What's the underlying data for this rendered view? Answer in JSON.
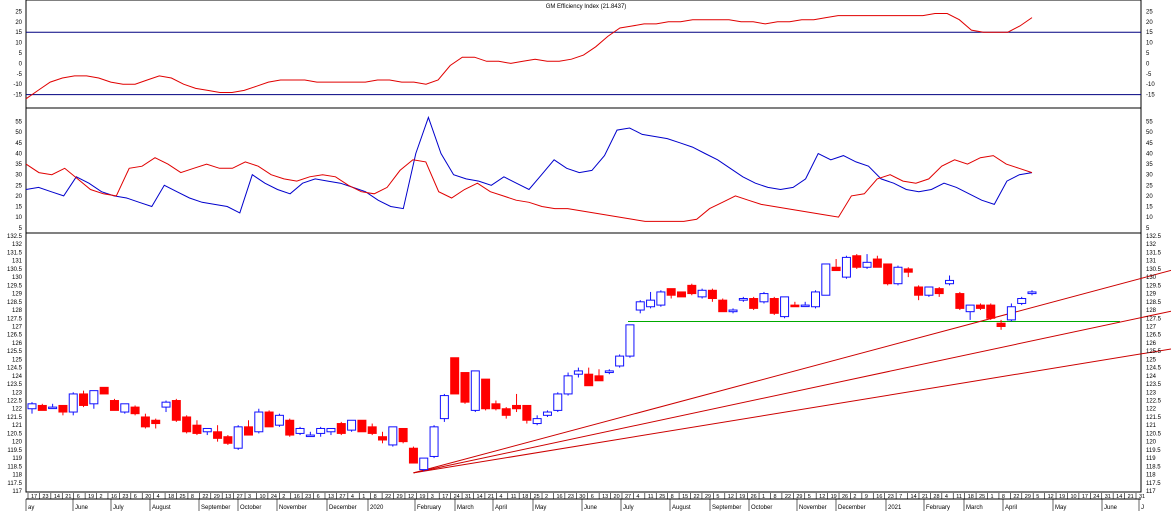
{
  "chart_data": [
    {
      "type": "line",
      "title": "GM Efficiency Index (21.8437)",
      "ylim": [
        -20,
        30
      ],
      "yticks": [
        25,
        20,
        15,
        10,
        5,
        0,
        -5,
        -10,
        -15
      ],
      "reference_lines": [
        15,
        -15
      ],
      "colors": {
        "index": "#e00000",
        "reference": "#000080"
      },
      "series": [
        {
          "values": [
            -17,
            -13,
            -9,
            -7,
            -6,
            -6,
            -7,
            -9,
            -10,
            -10,
            -8,
            -6,
            -7,
            -10,
            -12,
            -13,
            -14,
            -14,
            -13,
            -11,
            -9,
            -8,
            -8,
            -8,
            -9,
            -9,
            -9,
            -9,
            -9,
            -8,
            -8,
            -9,
            -9,
            -10,
            -8,
            -1,
            3,
            3,
            1,
            1,
            0,
            1,
            2,
            1,
            1,
            2,
            4,
            8,
            13,
            17,
            18,
            19,
            19,
            20,
            20,
            21,
            21,
            21,
            21,
            20,
            20,
            19,
            20,
            20,
            21,
            21,
            22,
            23,
            23,
            23,
            23,
            23,
            23,
            23,
            23,
            24,
            24,
            21,
            16,
            15,
            15,
            15,
            18,
            22
          ]
        }
      ]
    },
    {
      "type": "line",
      "ylim": [
        3,
        60
      ],
      "yticks": [
        55,
        50,
        45,
        40,
        35,
        30,
        25,
        20,
        15,
        10,
        5
      ],
      "colors": {
        "blue": "#0000cc",
        "red": "#e00000"
      },
      "series": [
        {
          "values": [
            23,
            24,
            22,
            20,
            29,
            26,
            22,
            20,
            19,
            17,
            15,
            25,
            22,
            19,
            17,
            16,
            15,
            12,
            30,
            26,
            23,
            21,
            26,
            28,
            27,
            26,
            24,
            22,
            18,
            15,
            14,
            40,
            57,
            40,
            30,
            28,
            27,
            25,
            29,
            26,
            23,
            30,
            37,
            33,
            31,
            32,
            39,
            51,
            52,
            49,
            48,
            47,
            45,
            43,
            40,
            37,
            33,
            29,
            26,
            24,
            23,
            24,
            28,
            40,
            37,
            39,
            36,
            34,
            28,
            26,
            23,
            22,
            23,
            26,
            24,
            21,
            18,
            16,
            27,
            30,
            31
          ]
        },
        {
          "values": [
            35,
            31,
            30,
            33,
            28,
            23,
            21,
            20,
            33,
            34,
            38,
            35,
            31,
            33,
            35,
            33,
            33,
            36,
            34,
            30,
            28,
            27,
            29,
            30,
            29,
            25,
            22,
            21,
            24,
            32,
            37,
            36,
            22,
            19,
            23,
            26,
            22,
            20,
            18,
            17,
            15,
            14,
            14,
            13,
            12,
            11,
            10,
            9,
            8,
            8,
            8,
            8,
            9,
            14,
            17,
            20,
            18,
            16,
            15,
            14,
            13,
            12,
            11,
            10,
            20,
            21,
            28,
            30,
            27,
            26,
            28,
            34,
            37,
            35,
            38,
            39,
            35,
            33,
            31
          ]
        }
      ]
    },
    {
      "type": "candlestick",
      "ylim": [
        117.0,
        132.5
      ],
      "yticks": [
        132.5,
        132.0,
        131.5,
        131.0,
        130.5,
        130.0,
        129.5,
        129.0,
        128.5,
        128.0,
        127.5,
        127.0,
        126.5,
        126.0,
        125.5,
        125.0,
        124.5,
        124.0,
        123.5,
        123.0,
        122.5,
        122.0,
        121.5,
        121.0,
        120.5,
        120.0,
        119.5,
        119.0,
        118.5,
        118.0,
        117.5,
        117.0
      ],
      "colors": {
        "up": "#1010ff",
        "down": "#ff0000",
        "support": "#00aa00",
        "fan": "#cc0000"
      },
      "bars": [
        {
          "o": 122.0,
          "h": 122.4,
          "l": 121.7,
          "c": 122.3
        },
        {
          "o": 122.2,
          "h": 122.3,
          "l": 121.9,
          "c": 121.9
        },
        {
          "o": 122.1,
          "h": 122.3,
          "l": 122.0,
          "c": 122.1
        },
        {
          "o": 122.2,
          "h": 122.2,
          "l": 121.6,
          "c": 121.8
        },
        {
          "o": 121.8,
          "h": 123.0,
          "l": 121.6,
          "c": 122.9
        },
        {
          "o": 122.9,
          "h": 123.1,
          "l": 122.1,
          "c": 122.2
        },
        {
          "o": 122.3,
          "h": 123.1,
          "l": 122.0,
          "c": 123.1
        },
        {
          "o": 123.3,
          "h": 123.3,
          "l": 122.9,
          "c": 122.9
        },
        {
          "o": 122.5,
          "h": 122.6,
          "l": 121.9,
          "c": 121.9
        },
        {
          "o": 121.8,
          "h": 122.3,
          "l": 121.7,
          "c": 122.3
        },
        {
          "o": 122.1,
          "h": 122.2,
          "l": 121.6,
          "c": 121.7
        },
        {
          "o": 121.5,
          "h": 121.7,
          "l": 120.8,
          "c": 120.9
        },
        {
          "o": 121.3,
          "h": 121.4,
          "l": 120.8,
          "c": 121.1
        },
        {
          "o": 122.1,
          "h": 122.5,
          "l": 121.8,
          "c": 122.4
        },
        {
          "o": 122.5,
          "h": 122.6,
          "l": 121.2,
          "c": 121.3
        },
        {
          "o": 121.5,
          "h": 121.6,
          "l": 120.5,
          "c": 120.6
        },
        {
          "o": 121.0,
          "h": 121.3,
          "l": 120.4,
          "c": 120.5
        },
        {
          "o": 120.6,
          "h": 120.8,
          "l": 120.4,
          "c": 120.8
        },
        {
          "o": 120.6,
          "h": 121.0,
          "l": 120.0,
          "c": 120.2
        },
        {
          "o": 120.3,
          "h": 120.4,
          "l": 119.8,
          "c": 119.9
        },
        {
          "o": 119.6,
          "h": 121.0,
          "l": 119.5,
          "c": 120.9
        },
        {
          "o": 120.9,
          "h": 121.3,
          "l": 120.4,
          "c": 120.4
        },
        {
          "o": 120.6,
          "h": 122.0,
          "l": 120.5,
          "c": 121.8
        },
        {
          "o": 121.8,
          "h": 121.9,
          "l": 120.9,
          "c": 120.9
        },
        {
          "o": 121.0,
          "h": 121.7,
          "l": 120.9,
          "c": 121.6
        },
        {
          "o": 121.3,
          "h": 121.4,
          "l": 120.3,
          "c": 120.4
        },
        {
          "o": 120.5,
          "h": 120.9,
          "l": 120.4,
          "c": 120.8
        },
        {
          "o": 120.4,
          "h": 120.6,
          "l": 120.3,
          "c": 120.4
        },
        {
          "o": 120.5,
          "h": 120.9,
          "l": 120.3,
          "c": 120.8
        },
        {
          "o": 120.6,
          "h": 120.8,
          "l": 120.4,
          "c": 120.8
        },
        {
          "o": 121.1,
          "h": 121.2,
          "l": 120.4,
          "c": 120.5
        },
        {
          "o": 120.7,
          "h": 121.3,
          "l": 120.6,
          "c": 121.3
        },
        {
          "o": 121.3,
          "h": 121.3,
          "l": 120.6,
          "c": 120.6
        },
        {
          "o": 120.9,
          "h": 121.1,
          "l": 120.4,
          "c": 120.5
        },
        {
          "o": 120.3,
          "h": 120.6,
          "l": 119.9,
          "c": 120.1
        },
        {
          "o": 119.8,
          "h": 120.9,
          "l": 119.7,
          "c": 120.9
        },
        {
          "o": 120.8,
          "h": 120.8,
          "l": 119.9,
          "c": 120.0
        },
        {
          "o": 119.6,
          "h": 119.7,
          "l": 118.7,
          "c": 118.7
        },
        {
          "o": 118.3,
          "h": 119.0,
          "l": 118.2,
          "c": 119.0
        },
        {
          "o": 119.1,
          "h": 121.0,
          "l": 119.0,
          "c": 120.9
        },
        {
          "o": 121.4,
          "h": 122.9,
          "l": 121.2,
          "c": 122.8
        },
        {
          "o": 125.1,
          "h": 125.1,
          "l": 122.9,
          "c": 122.9
        },
        {
          "o": 124.2,
          "h": 124.2,
          "l": 122.3,
          "c": 122.4
        },
        {
          "o": 121.9,
          "h": 124.3,
          "l": 121.8,
          "c": 124.3
        },
        {
          "o": 123.8,
          "h": 123.8,
          "l": 121.9,
          "c": 122.0
        },
        {
          "o": 122.3,
          "h": 122.5,
          "l": 121.9,
          "c": 122.0
        },
        {
          "o": 122.0,
          "h": 122.1,
          "l": 121.4,
          "c": 121.6
        },
        {
          "o": 122.2,
          "h": 122.9,
          "l": 121.8,
          "c": 122.0
        },
        {
          "o": 122.2,
          "h": 122.2,
          "l": 121.1,
          "c": 121.3
        },
        {
          "o": 121.1,
          "h": 121.6,
          "l": 121.0,
          "c": 121.4
        },
        {
          "o": 121.6,
          "h": 121.9,
          "l": 121.5,
          "c": 121.8
        },
        {
          "o": 121.9,
          "h": 123.0,
          "l": 121.8,
          "c": 122.9
        },
        {
          "o": 122.9,
          "h": 124.2,
          "l": 122.8,
          "c": 124.0
        },
        {
          "o": 124.1,
          "h": 124.5,
          "l": 123.9,
          "c": 124.3
        },
        {
          "o": 124.1,
          "h": 124.5,
          "l": 123.4,
          "c": 123.4
        },
        {
          "o": 124.0,
          "h": 124.4,
          "l": 123.7,
          "c": 123.7
        },
        {
          "o": 124.2,
          "h": 124.4,
          "l": 124.1,
          "c": 124.3
        },
        {
          "o": 124.6,
          "h": 125.3,
          "l": 124.5,
          "c": 125.2
        },
        {
          "o": 125.2,
          "h": 127.1,
          "l": 125.1,
          "c": 127.1
        },
        {
          "o": 128.0,
          "h": 128.6,
          "l": 127.8,
          "c": 128.5
        },
        {
          "o": 128.2,
          "h": 129.1,
          "l": 128.1,
          "c": 128.6
        },
        {
          "o": 128.3,
          "h": 129.2,
          "l": 128.2,
          "c": 129.1
        },
        {
          "o": 129.3,
          "h": 129.3,
          "l": 128.7,
          "c": 128.9
        },
        {
          "o": 129.1,
          "h": 129.1,
          "l": 128.8,
          "c": 128.8
        },
        {
          "o": 129.5,
          "h": 129.6,
          "l": 128.9,
          "c": 129.0
        },
        {
          "o": 128.8,
          "h": 129.3,
          "l": 128.7,
          "c": 129.2
        },
        {
          "o": 129.2,
          "h": 129.3,
          "l": 128.5,
          "c": 128.7
        },
        {
          "o": 128.6,
          "h": 128.7,
          "l": 127.9,
          "c": 127.9
        },
        {
          "o": 127.9,
          "h": 128.1,
          "l": 127.8,
          "c": 128.0
        },
        {
          "o": 128.6,
          "h": 128.8,
          "l": 128.5,
          "c": 128.7
        },
        {
          "o": 128.7,
          "h": 128.8,
          "l": 128.0,
          "c": 128.1
        },
        {
          "o": 128.5,
          "h": 129.1,
          "l": 128.4,
          "c": 129.0
        },
        {
          "o": 128.7,
          "h": 128.8,
          "l": 127.7,
          "c": 127.8
        },
        {
          "o": 127.6,
          "h": 128.8,
          "l": 127.5,
          "c": 128.8
        },
        {
          "o": 128.3,
          "h": 128.5,
          "l": 128.2,
          "c": 128.2
        },
        {
          "o": 128.3,
          "h": 128.5,
          "l": 128.2,
          "c": 128.3
        },
        {
          "o": 128.2,
          "h": 129.2,
          "l": 128.1,
          "c": 129.1
        },
        {
          "o": 128.9,
          "h": 130.8,
          "l": 128.9,
          "c": 130.8
        },
        {
          "o": 130.6,
          "h": 131.1,
          "l": 130.4,
          "c": 130.4
        },
        {
          "o": 130.0,
          "h": 131.3,
          "l": 129.9,
          "c": 131.2
        },
        {
          "o": 131.3,
          "h": 131.4,
          "l": 130.5,
          "c": 130.6
        },
        {
          "o": 130.6,
          "h": 131.4,
          "l": 130.5,
          "c": 130.9
        },
        {
          "o": 131.1,
          "h": 131.3,
          "l": 130.6,
          "c": 130.6
        },
        {
          "o": 130.8,
          "h": 130.8,
          "l": 129.5,
          "c": 129.6
        },
        {
          "o": 129.6,
          "h": 130.7,
          "l": 129.5,
          "c": 130.6
        },
        {
          "o": 130.5,
          "h": 130.6,
          "l": 130.0,
          "c": 130.3
        },
        {
          "o": 129.4,
          "h": 129.5,
          "l": 128.6,
          "c": 128.9
        },
        {
          "o": 128.9,
          "h": 129.4,
          "l": 128.8,
          "c": 129.4
        },
        {
          "o": 129.3,
          "h": 129.4,
          "l": 128.8,
          "c": 129.0
        },
        {
          "o": 129.6,
          "h": 130.1,
          "l": 129.5,
          "c": 129.8
        },
        {
          "o": 129.0,
          "h": 129.1,
          "l": 128.0,
          "c": 128.1
        },
        {
          "o": 127.9,
          "h": 128.3,
          "l": 127.4,
          "c": 128.3
        },
        {
          "o": 128.3,
          "h": 128.4,
          "l": 128.0,
          "c": 128.1
        },
        {
          "o": 128.3,
          "h": 128.4,
          "l": 127.4,
          "c": 127.5
        },
        {
          "o": 127.2,
          "h": 127.4,
          "l": 126.8,
          "c": 127.0
        },
        {
          "o": 127.4,
          "h": 128.4,
          "l": 127.3,
          "c": 128.2
        },
        {
          "o": 128.4,
          "h": 128.8,
          "l": 128.3,
          "c": 128.7
        },
        {
          "o": 129.0,
          "h": 129.2,
          "l": 128.9,
          "c": 129.1
        }
      ],
      "support_level": 127.3,
      "fan_lines": [
        {
          "from_bar": 37,
          "from_value": 118.1,
          "to_bar": 117,
          "to_value": 131.5
        },
        {
          "from_bar": 37,
          "from_value": 118.1,
          "to_bar": 117,
          "to_value": 128.8
        },
        {
          "from_bar": 37,
          "from_value": 118.1,
          "to_bar": 117,
          "to_value": 126.3
        }
      ]
    }
  ],
  "x_axis": {
    "tick_labels": [
      "17",
      "23",
      "14",
      "21",
      "6",
      "19",
      "2",
      "16",
      "23",
      "6",
      "20",
      "4",
      "18",
      "25",
      "8",
      "22",
      "29",
      "13",
      "27",
      "3",
      "10",
      "24",
      "2",
      "16",
      "23",
      "6",
      "13",
      "27",
      "4",
      "1",
      "8",
      "22",
      "29",
      "12",
      "19",
      "3",
      "17",
      "24",
      "31",
      "14",
      "21",
      "4",
      "11",
      "18",
      "25",
      "2",
      "16",
      "23",
      "30",
      "6",
      "13",
      "20",
      "27",
      "4",
      "11",
      "25",
      "8",
      "15",
      "22",
      "29",
      "5",
      "12",
      "19",
      "26",
      "1",
      "8",
      "22",
      "29",
      "5",
      "12",
      "19",
      "26",
      "2",
      "9",
      "16",
      "23",
      "7",
      "14",
      "21",
      "28",
      "4",
      "11",
      "18",
      "25",
      "1",
      "8",
      "22",
      "29",
      "5",
      "12",
      "19",
      "10",
      "17",
      "24",
      "31",
      "14",
      "21",
      "31"
    ],
    "month_labels": [
      "ay",
      "June",
      "July",
      "August",
      "September",
      "October",
      "November",
      "December",
      "2020",
      "February",
      "March",
      "April",
      "May",
      "June",
      "July",
      "August",
      "September",
      "October",
      "November",
      "December",
      "2021",
      "February",
      "March",
      "April",
      "May",
      "June",
      "J"
    ]
  }
}
